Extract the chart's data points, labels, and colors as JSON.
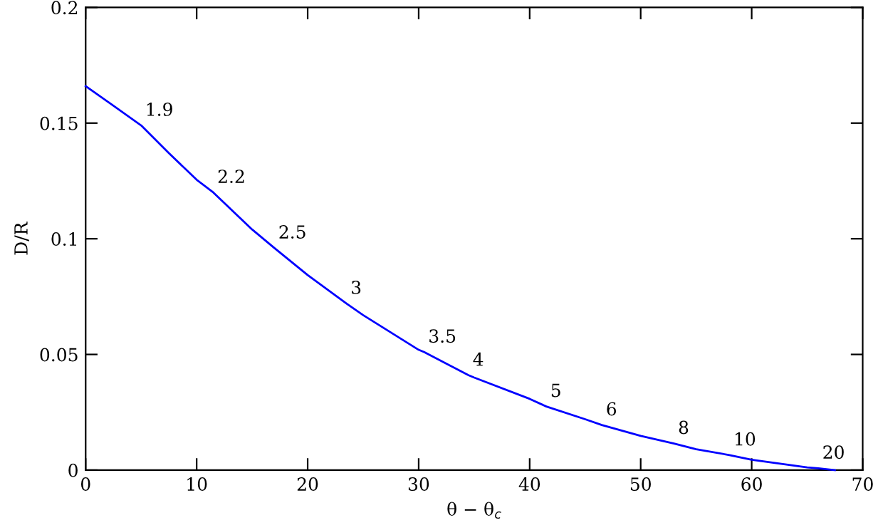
{
  "chart_data": {
    "type": "line",
    "xlabel": "θ − θ$_{c}$",
    "ylabel": "D/R",
    "x": [
      0,
      2.5,
      5,
      7.5,
      10,
      11.5,
      15,
      17,
      20,
      23.5,
      25,
      30,
      30.5,
      34.5,
      35,
      40,
      41.5,
      45,
      46.5,
      50,
      53,
      55,
      58,
      60,
      65,
      66,
      67.5
    ],
    "series": [
      {
        "color": "#0000ff",
        "values": [
          0.166,
          0.1575,
          0.149,
          0.137,
          0.1255,
          0.12,
          0.104,
          0.096,
          0.0843,
          0.072,
          0.067,
          0.052,
          0.051,
          0.041,
          0.04,
          0.0308,
          0.0275,
          0.022,
          0.0195,
          0.0148,
          0.0115,
          0.009,
          0.0065,
          0.0045,
          0.0012,
          0.0008,
          0
        ]
      }
    ],
    "annotations": [
      {
        "text": "1.9",
        "x": 5,
        "y": 0.149
      },
      {
        "text": "2.2",
        "x": 11.5,
        "y": 0.12
      },
      {
        "text": "2.5",
        "x": 17,
        "y": 0.096
      },
      {
        "text": "3",
        "x": 23.5,
        "y": 0.072
      },
      {
        "text": "3.5",
        "x": 30.5,
        "y": 0.051
      },
      {
        "text": "4",
        "x": 34.5,
        "y": 0.041
      },
      {
        "text": "5",
        "x": 41.5,
        "y": 0.0275
      },
      {
        "text": "6",
        "x": 46.5,
        "y": 0.0195
      },
      {
        "text": "8",
        "x": 53,
        "y": 0.0115
      },
      {
        "text": "10",
        "x": 58,
        "y": 0.0065
      },
      {
        "text": "20",
        "x": 66,
        "y": 0.0008
      }
    ],
    "xlim": [
      0,
      70
    ],
    "ylim": [
      0,
      0.2
    ],
    "xticks": [
      0,
      10,
      20,
      30,
      40,
      50,
      60,
      70
    ],
    "yticks": [
      0,
      0.05,
      0.1,
      0.15,
      0.2
    ],
    "grid": false,
    "legend": false,
    "marker": "none",
    "line_style": "solid"
  }
}
